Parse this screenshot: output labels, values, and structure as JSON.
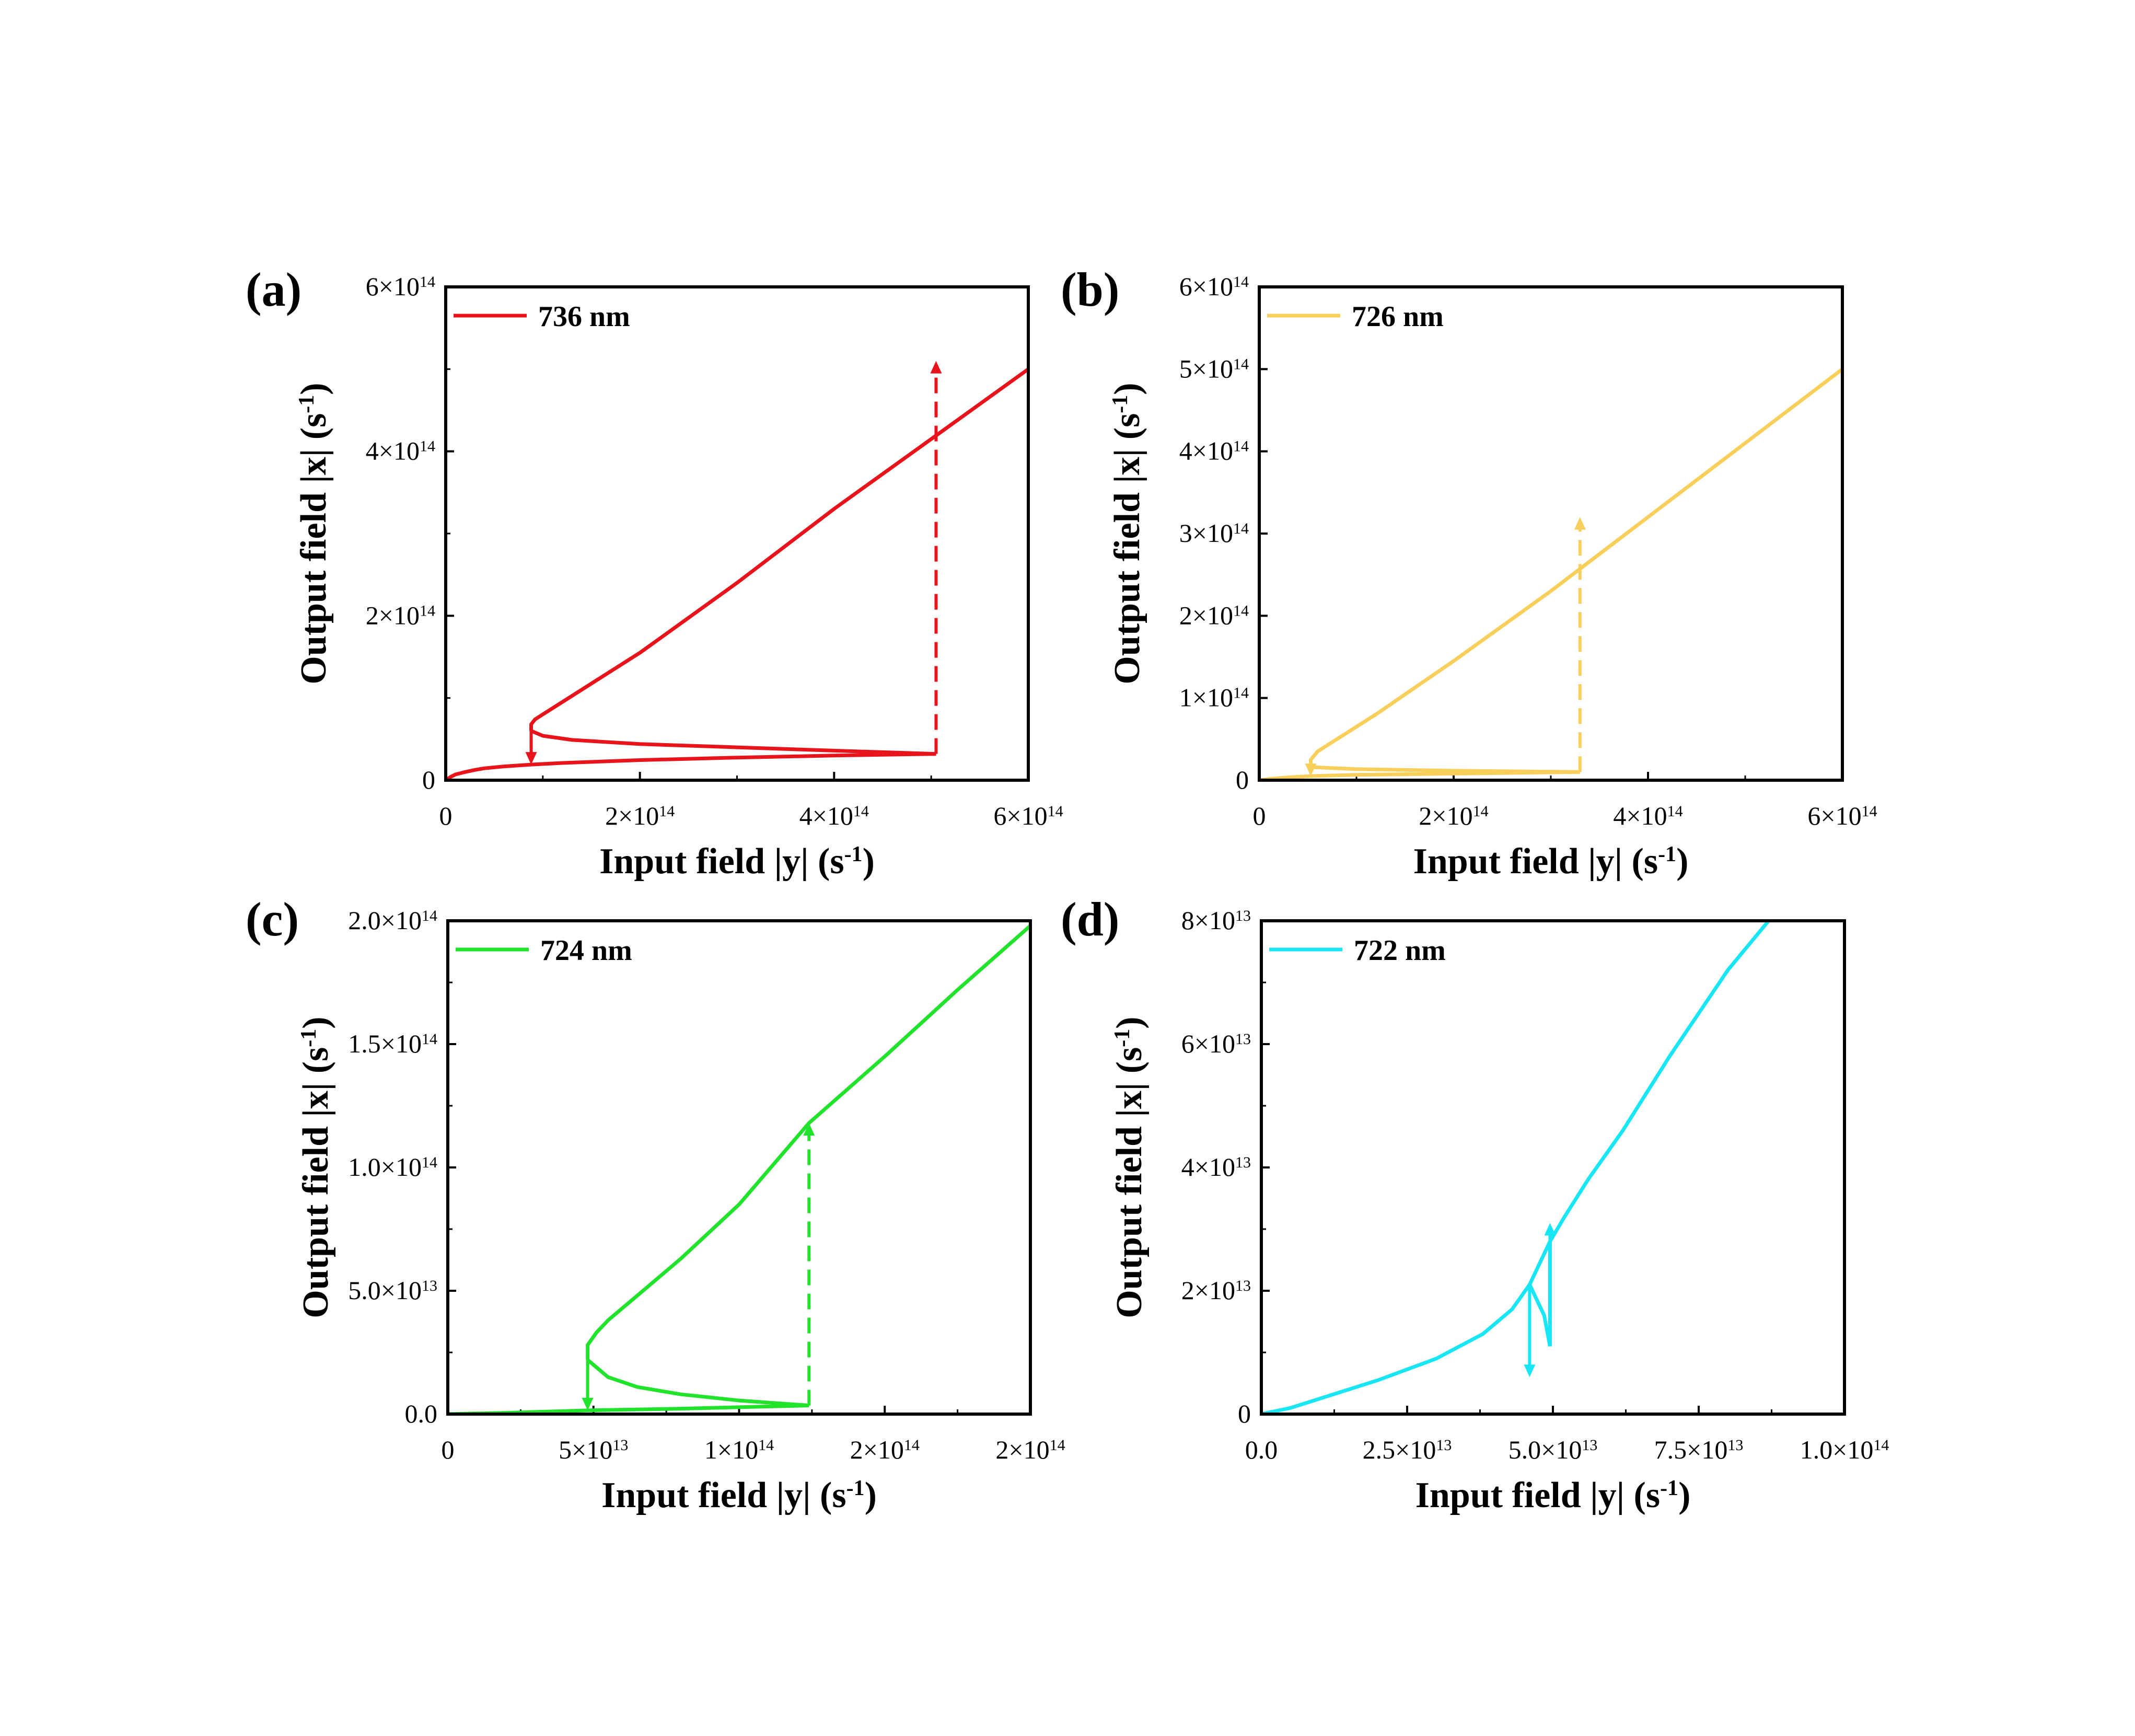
{
  "chart_data": [
    {
      "panel": "(a)",
      "type": "line",
      "xlabel": "Input field |y| (s",
      "ylabel": "Output field |x| (s",
      "unit_suffix": ")",
      "unit_exp": "-1",
      "xlim": [
        0,
        600000000000000.0
      ],
      "ylim": [
        0,
        600000000000000.0
      ],
      "xticks": [
        {
          "v": 0,
          "m": "0",
          "e": ""
        },
        {
          "v": 200000000000000.0,
          "m": "2×10",
          "e": "14"
        },
        {
          "v": 400000000000000.0,
          "m": "4×10",
          "e": "14"
        },
        {
          "v": 600000000000000.0,
          "m": "6×10",
          "e": "14"
        }
      ],
      "yticks": [
        {
          "v": 0,
          "m": "0",
          "e": ""
        },
        {
          "v": 200000000000000.0,
          "m": "2×10",
          "e": "14"
        },
        {
          "v": 400000000000000.0,
          "m": "4×10",
          "e": "14"
        },
        {
          "v": 600000000000000.0,
          "m": "6×10",
          "e": "14"
        }
      ],
      "xminor": [
        100000000000000.0,
        300000000000000.0,
        500000000000000.0
      ],
      "yminor": [
        100000000000000.0,
        300000000000000.0,
        500000000000000.0
      ],
      "color": "#e8141b",
      "series": [
        {
          "name": "736 nm",
          "s": [
            [
              0,
              0
            ],
            [
              5000000000000.0,
              4000000000000.0
            ],
            [
              10000000000000.0,
              7000000000000.0
            ],
            [
              20000000000000.0,
              10000000000000.0
            ],
            [
              30000000000000.0,
              12500000000000.0
            ],
            [
              40000000000000.0,
              14500000000000.0
            ],
            [
              60000000000000.0,
              16800000000000.0
            ],
            [
              88000000000000.0,
              19000000000000.0
            ],
            [
              120000000000000.0,
              21000000000000.0
            ],
            [
              200000000000000.0,
              24500000000000.0
            ],
            [
              300000000000000.0,
              27500000000000.0
            ],
            [
              400000000000000.0,
              30000000000000.0
            ],
            [
              505000000000000.0,
              32000000000000.0
            ]
          ],
          "m": [
            [
              88000000000000.0,
              60000000000000.0
            ],
            [
              100000000000000.0,
              54000000000000.0
            ],
            [
              130000000000000.0,
              49000000000000.0
            ],
            [
              200000000000000.0,
              44000000000000.0
            ],
            [
              300000000000000.0,
              40000000000000.0
            ],
            [
              400000000000000.0,
              36000000000000.0
            ],
            [
              505000000000000.0,
              32000000000000.0
            ]
          ],
          "u": [
            [
              88000000000000.0,
              60000000000000.0
            ],
            [
              88000000000000.0,
              68000000000000.0
            ],
            [
              92000000000000.0,
              74000000000000.0
            ],
            [
              100000000000000.0,
              80000000000000.0
            ],
            [
              120000000000000.0,
              95000000000000.0
            ],
            [
              160000000000000.0,
              125000000000000.0
            ],
            [
              200000000000000.0,
              155000000000000.0
            ],
            [
              300000000000000.0,
              240000000000000.0
            ],
            [
              400000000000000.0,
              330000000000000.0
            ],
            [
              500000000000000.0,
              415000000000000.0
            ],
            [
              600000000000000.0,
              500000000000000.0
            ]
          ]
        }
      ],
      "jump_down": {
        "x": 88000000000000.0,
        "from": 60000000000000.0,
        "to": 19000000000000.0
      },
      "jump_up": {
        "x": 505000000000000.0,
        "from": 32000000000000.0,
        "to": 510000000000000.0
      }
    },
    {
      "panel": "(b)",
      "type": "line",
      "xlabel": "Input field |y| (s",
      "ylabel": "Output field |x| (s",
      "unit_suffix": ")",
      "unit_exp": "-1",
      "xlim": [
        0,
        600000000000000.0
      ],
      "ylim": [
        0,
        600000000000000.0
      ],
      "xticks": [
        {
          "v": 0,
          "m": "0",
          "e": ""
        },
        {
          "v": 200000000000000.0,
          "m": "2×10",
          "e": "14"
        },
        {
          "v": 400000000000000.0,
          "m": "4×10",
          "e": "14"
        },
        {
          "v": 600000000000000.0,
          "m": "6×10",
          "e": "14"
        }
      ],
      "yticks": [
        {
          "v": 0,
          "m": "0",
          "e": ""
        },
        {
          "v": 100000000000000.0,
          "m": "1×10",
          "e": "14"
        },
        {
          "v": 200000000000000.0,
          "m": "2×10",
          "e": "14"
        },
        {
          "v": 300000000000000.0,
          "m": "3×10",
          "e": "14"
        },
        {
          "v": 400000000000000.0,
          "m": "4×10",
          "e": "14"
        },
        {
          "v": 500000000000000.0,
          "m": "5×10",
          "e": "14"
        },
        {
          "v": 600000000000000.0,
          "m": "6×10",
          "e": "14"
        }
      ],
      "xminor": [
        100000000000000.0,
        300000000000000.0,
        500000000000000.0
      ],
      "yminor": [],
      "color": "#f7cf5a",
      "series": [
        {
          "name": "726 nm",
          "s": [
            [
              0,
              0
            ],
            [
              10000000000000.0,
              1500000000000.0
            ],
            [
              30000000000000.0,
              3500000000000.0
            ],
            [
              53000000000000.0,
              5000000000000.0
            ],
            [
              100000000000000.0,
              6500000000000.0
            ],
            [
              200000000000000.0,
              8000000000000.0
            ],
            [
              330000000000000.0,
              10000000000000.0
            ]
          ],
          "m": [
            [
              53000000000000.0,
              16000000000000.0
            ],
            [
              70000000000000.0,
              15000000000000.0
            ],
            [
              100000000000000.0,
              13500000000000.0
            ],
            [
              200000000000000.0,
              11500000000000.0
            ],
            [
              330000000000000.0,
              10000000000000.0
            ]
          ],
          "u": [
            [
              53000000000000.0,
              16000000000000.0
            ],
            [
              53000000000000.0,
              25000000000000.0
            ],
            [
              60000000000000.0,
              35000000000000.0
            ],
            [
              80000000000000.0,
              50000000000000.0
            ],
            [
              120000000000000.0,
              80000000000000.0
            ],
            [
              200000000000000.0,
              145000000000000.0
            ],
            [
              300000000000000.0,
              230000000000000.0
            ],
            [
              400000000000000.0,
              320000000000000.0
            ],
            [
              500000000000000.0,
              410000000000000.0
            ],
            [
              600000000000000.0,
              500000000000000.0
            ]
          ]
        }
      ],
      "jump_down": {
        "x": 53000000000000.0,
        "from": 16000000000000.0,
        "to": 5000000000000.0
      },
      "jump_up": {
        "x": 330000000000000.0,
        "from": 10000000000000.0,
        "to": 320000000000000.0
      }
    },
    {
      "panel": "(c)",
      "type": "line",
      "xlabel": "Input field |y| (s",
      "ylabel": "Output field |x| (s",
      "unit_suffix": ")",
      "unit_exp": "-1",
      "xlim": [
        0,
        200000000000000.0
      ],
      "ylim": [
        0,
        200000000000000.0
      ],
      "xticks": [
        {
          "v": 0,
          "m": "0",
          "e": ""
        },
        {
          "v": 50000000000000.0,
          "m": "5×10",
          "e": "13"
        },
        {
          "v": 100000000000000.0,
          "m": "1×10",
          "e": "14"
        },
        {
          "v": 150000000000000.0,
          "m": "2×10",
          "e": "14"
        },
        {
          "v": 200000000000000.0,
          "m": "2×10",
          "e": "14"
        }
      ],
      "yticks": [
        {
          "v": 0,
          "m": "0.0",
          "e": ""
        },
        {
          "v": 50000000000000.0,
          "m": "5.0×10",
          "e": "13"
        },
        {
          "v": 100000000000000.0,
          "m": "1.0×10",
          "e": "14"
        },
        {
          "v": 150000000000000.0,
          "m": "1.5×10",
          "e": "14"
        },
        {
          "v": 200000000000000.0,
          "m": "2.0×10",
          "e": "14"
        }
      ],
      "xminor": [
        25000000000000.0,
        75000000000000.0,
        125000000000000.0,
        175000000000000.0
      ],
      "yminor": [
        25000000000000.0,
        75000000000000.0,
        125000000000000.0,
        175000000000000.0
      ],
      "color": "#22e32c",
      "series": [
        {
          "name": "724 nm",
          "s": [
            [
              0,
              0
            ],
            [
              20000000000000.0,
              500000000000.0
            ],
            [
              48000000000000.0,
              1500000000000.0
            ],
            [
              80000000000000.0,
              2200000000000.0
            ],
            [
              124000000000000.0,
              3500000000000.0
            ]
          ],
          "m": [
            [
              48000000000000.0,
              22000000000000.0
            ],
            [
              55000000000000.0,
              15000000000000.0
            ],
            [
              65000000000000.0,
              11000000000000.0
            ],
            [
              80000000000000.0,
              8000000000000.0
            ],
            [
              100000000000000.0,
              5500000000000.0
            ],
            [
              124000000000000.0,
              3500000000000.0
            ]
          ],
          "u": [
            [
              48000000000000.0,
              22000000000000.0
            ],
            [
              48000000000000.0,
              28000000000000.0
            ],
            [
              51000000000000.0,
              33000000000000.0
            ],
            [
              55000000000000.0,
              38000000000000.0
            ],
            [
              65000000000000.0,
              48000000000000.0
            ],
            [
              80000000000000.0,
              63000000000000.0
            ],
            [
              100000000000000.0,
              85000000000000.0
            ],
            [
              124000000000000.0,
              118000000000000.0
            ],
            [
              150000000000000.0,
              145000000000000.0
            ],
            [
              175000000000000.0,
              172000000000000.0
            ],
            [
              200000000000000.0,
              198000000000000.0
            ]
          ]
        }
      ],
      "jump_down": {
        "x": 48000000000000.0,
        "from": 22000000000000.0,
        "to": 1500000000000.0
      },
      "jump_up": {
        "x": 124000000000000.0,
        "from": 3500000000000.0,
        "to": 118000000000000.0
      }
    },
    {
      "panel": "(d)",
      "type": "line",
      "xlabel": "Input field |y| (s",
      "ylabel": "Output field |x| (s",
      "unit_suffix": ")",
      "unit_exp": "-1",
      "xlim": [
        0,
        100000000000000.0
      ],
      "ylim": [
        0,
        80000000000000.0
      ],
      "xticks": [
        {
          "v": 0,
          "m": "0.0",
          "e": ""
        },
        {
          "v": 25000000000000.0,
          "m": "2.5×10",
          "e": "13"
        },
        {
          "v": 50000000000000.0,
          "m": "5.0×10",
          "e": "13"
        },
        {
          "v": 75000000000000.0,
          "m": "7.5×10",
          "e": "13"
        },
        {
          "v": 100000000000000.0,
          "m": "1.0×10",
          "e": "14"
        }
      ],
      "yticks": [
        {
          "v": 0,
          "m": "0",
          "e": ""
        },
        {
          "v": 20000000000000.0,
          "m": "2×10",
          "e": "13"
        },
        {
          "v": 40000000000000.0,
          "m": "4×10",
          "e": "13"
        },
        {
          "v": 60000000000000.0,
          "m": "6×10",
          "e": "13"
        },
        {
          "v": 80000000000000.0,
          "m": "8×10",
          "e": "13"
        }
      ],
      "xminor": [
        12500000000000.0,
        37500000000000.0,
        62500000000000.0,
        87500000000000.0
      ],
      "yminor": [
        10000000000000.0,
        30000000000000.0,
        50000000000000.0,
        70000000000000.0
      ],
      "color": "#19e6f5",
      "series": [
        {
          "name": "722 nm",
          "s": [
            [
              0,
              0
            ],
            [
              5000000000000.0,
              1000000000000.0
            ],
            [
              10000000000000.0,
              2500000000000.0
            ],
            [
              20000000000000.0,
              5500000000000.0
            ],
            [
              30000000000000.0,
              9000000000000.0
            ],
            [
              38000000000000.0,
              13000000000000.0
            ],
            [
              43000000000000.0,
              17000000000000.0
            ],
            [
              46000000000000.0,
              21000000000000.0
            ],
            [
              48000000000000.0,
              25000000000000.0
            ],
            [
              49500000000000.0,
              28000000000000.0
            ]
          ],
          "m": [
            [
              46000000000000.0,
              21000000000000.0
            ],
            [
              48500000000000.0,
              16000000000000.0
            ],
            [
              49500000000000.0,
              11000000000000.0
            ]
          ],
          "u": [
            [
              49500000000000.0,
              11000000000000.0
            ],
            [
              49500000000000.0,
              28000000000000.0
            ],
            [
              52000000000000.0,
              32000000000000.0
            ],
            [
              56000000000000.0,
              38000000000000.0
            ],
            [
              62000000000000.0,
              46000000000000.0
            ],
            [
              70000000000000.0,
              58000000000000.0
            ],
            [
              80000000000000.0,
              72000000000000.0
            ],
            [
              87000000000000.0,
              80000000000000.0
            ]
          ]
        }
      ],
      "jump_down": {
        "x": 46000000000000.0,
        "from": 21000000000000.0,
        "to": 6000000000000.0
      },
      "jump_up": {
        "x": 49500000000000.0,
        "from": 11000000000000.0,
        "to": 31000000000000.0
      }
    }
  ]
}
